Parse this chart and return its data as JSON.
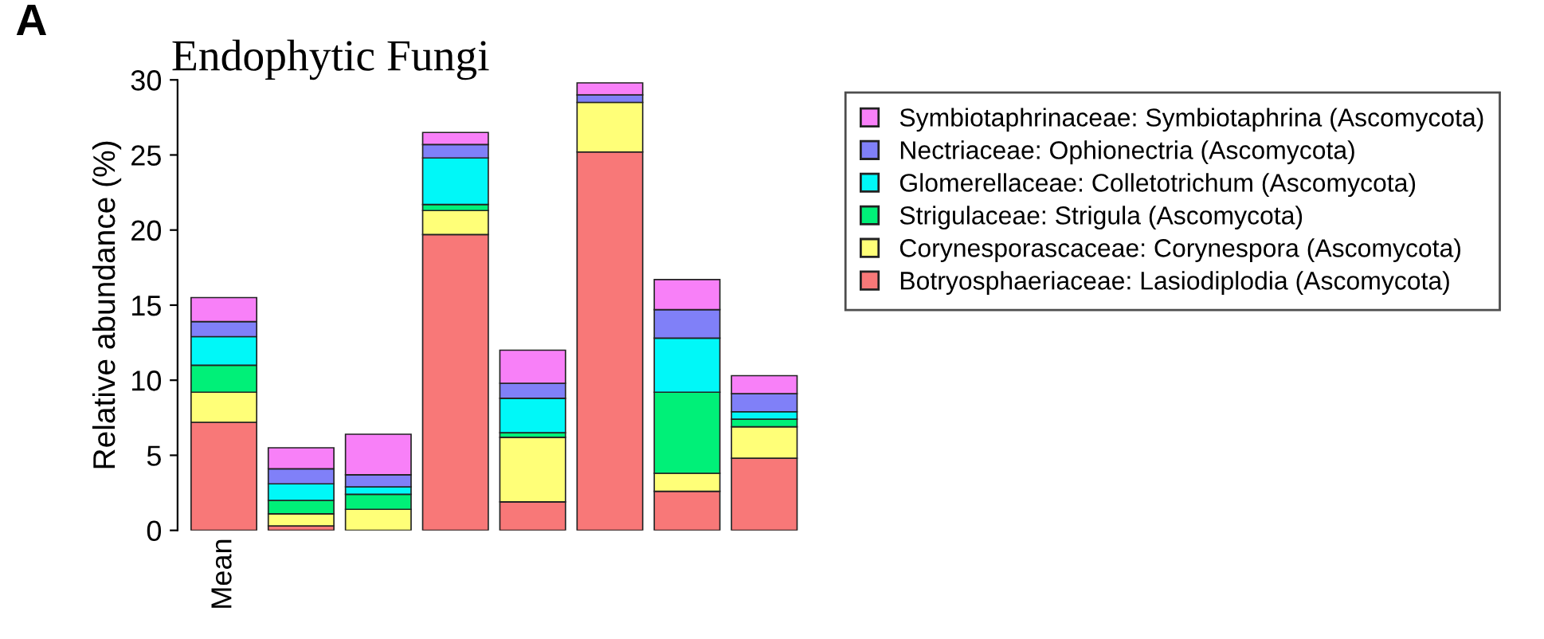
{
  "chart_data": {
    "type": "bar",
    "title": "Endophytic Fungi",
    "ylabel": "Relative abundance (%)",
    "annotations": [
      "A"
    ],
    "categories": [
      "Mean",
      null,
      null,
      null,
      null,
      null,
      null,
      null
    ],
    "stacked": true,
    "ylim": [
      0,
      30
    ],
    "yticks": [
      0,
      5,
      10,
      15,
      20,
      25,
      30
    ],
    "grid": false,
    "legend": "top right",
    "series": [
      {
        "name": "Botryosphaeriaceae: Lasiodiplodia (Ascomycota)",
        "color": "#f87878",
        "values": [
          7.2,
          0.3,
          null,
          19.7,
          1.9,
          25.2,
          2.6,
          4.8
        ]
      },
      {
        "name": "Corynesporascaceae: Corynespora (Ascomycota)",
        "color": "#ffff78",
        "values": [
          2.0,
          0.8,
          1.4,
          1.6,
          4.3,
          3.3,
          1.2,
          2.1
        ]
      },
      {
        "name": "Strigulaceae: Strigula (Ascomycota)",
        "color": "#00f078",
        "values": [
          1.8,
          0.9,
          1.0,
          0.4,
          0.3,
          null,
          5.4,
          0.5
        ]
      },
      {
        "name": "Glomerellaceae: Colletotrichum (Ascomycota)",
        "color": "#00f8f8",
        "values": [
          1.9,
          1.1,
          0.5,
          3.1,
          2.3,
          null,
          3.6,
          0.5
        ]
      },
      {
        "name": "Nectriaceae: Ophionectria (Ascomycota)",
        "color": "#8080f8",
        "values": [
          1.0,
          1.0,
          0.8,
          0.9,
          1.0,
          0.5,
          1.9,
          1.2
        ]
      },
      {
        "name": "Symbiotaphrinaceae: Symbiotaphrina (Ascomycota)",
        "color": "#f880f8",
        "values": [
          1.6,
          1.4,
          2.7,
          0.8,
          2.2,
          0.8,
          2.0,
          1.2
        ]
      }
    ]
  }
}
